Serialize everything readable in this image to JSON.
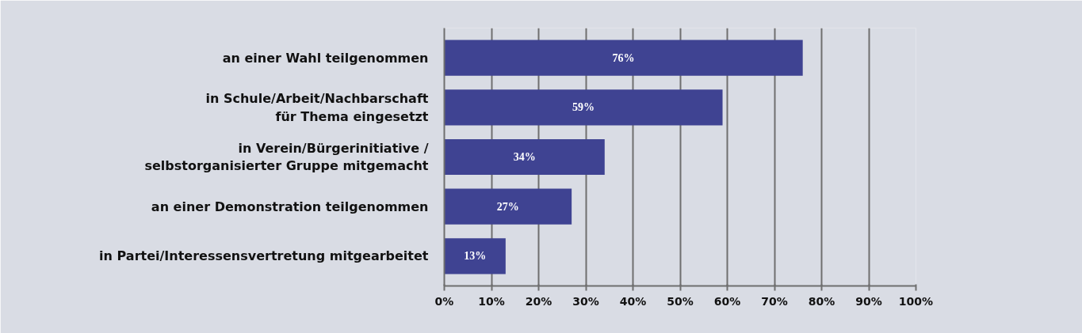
{
  "chart_data": {
    "type": "bar",
    "orientation": "horizontal",
    "categories": [
      "an einer Wahl teilgenommen",
      "in Schule/Arbeit/Nachbarschaft\nfür Thema eingesetzt",
      "in Verein/Bürgerinitiative /\nselbstorganisierter Gruppe mitgemacht",
      "an einer Demonstration teilgenommen",
      "in Partei/Interessensvertretung mitgearbeitet"
    ],
    "values": [
      76,
      59,
      34,
      27,
      13
    ],
    "value_labels": [
      "76%",
      "59%",
      "34%",
      "27%",
      "13%"
    ],
    "color": "#3f4392",
    "xlim": [
      0,
      100
    ],
    "xticks": [
      {
        "value": 0,
        "label": "0%"
      },
      {
        "value": 10,
        "label": "10%"
      },
      {
        "value": 20,
        "label": "20%"
      },
      {
        "value": 30,
        "label": "30%"
      },
      {
        "value": 40,
        "label": "40%"
      },
      {
        "value": 50,
        "label": "50%"
      },
      {
        "value": 60,
        "label": "60%"
      },
      {
        "value": 70,
        "label": "70%"
      },
      {
        "value": 80,
        "label": "80%"
      },
      {
        "value": 90,
        "label": "90%"
      },
      {
        "value": 100,
        "label": "100%"
      }
    ],
    "grid": "x"
  }
}
